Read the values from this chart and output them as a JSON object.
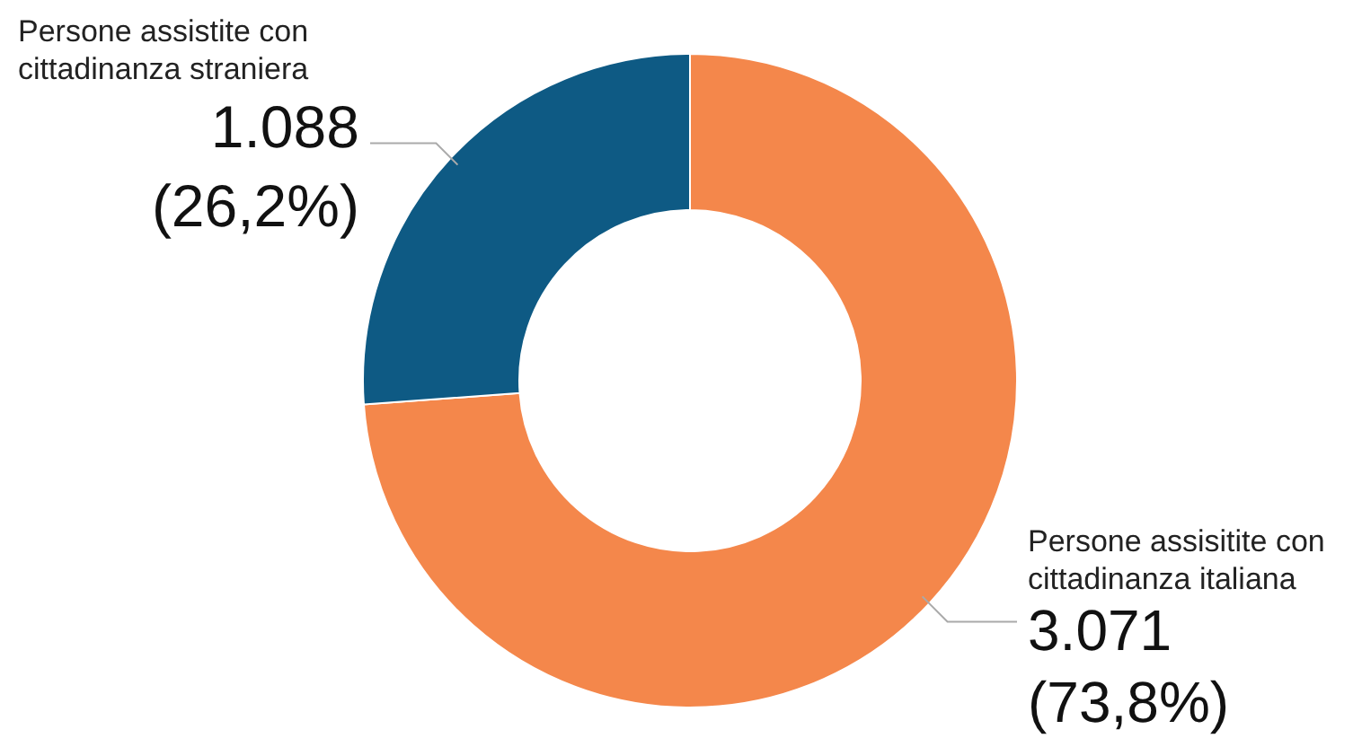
{
  "chart_data": {
    "type": "donut",
    "categories": [
      "Persone assisitite con cittadinanza italiana",
      "Persone assistite con cittadinanza straniera"
    ],
    "values": [
      3071,
      1088
    ],
    "colors": [
      "#f4874b",
      "#0e5a84"
    ],
    "value_labels": [
      "3.071 (73,8%)",
      "1.088 (26,2%)"
    ]
  }
}
